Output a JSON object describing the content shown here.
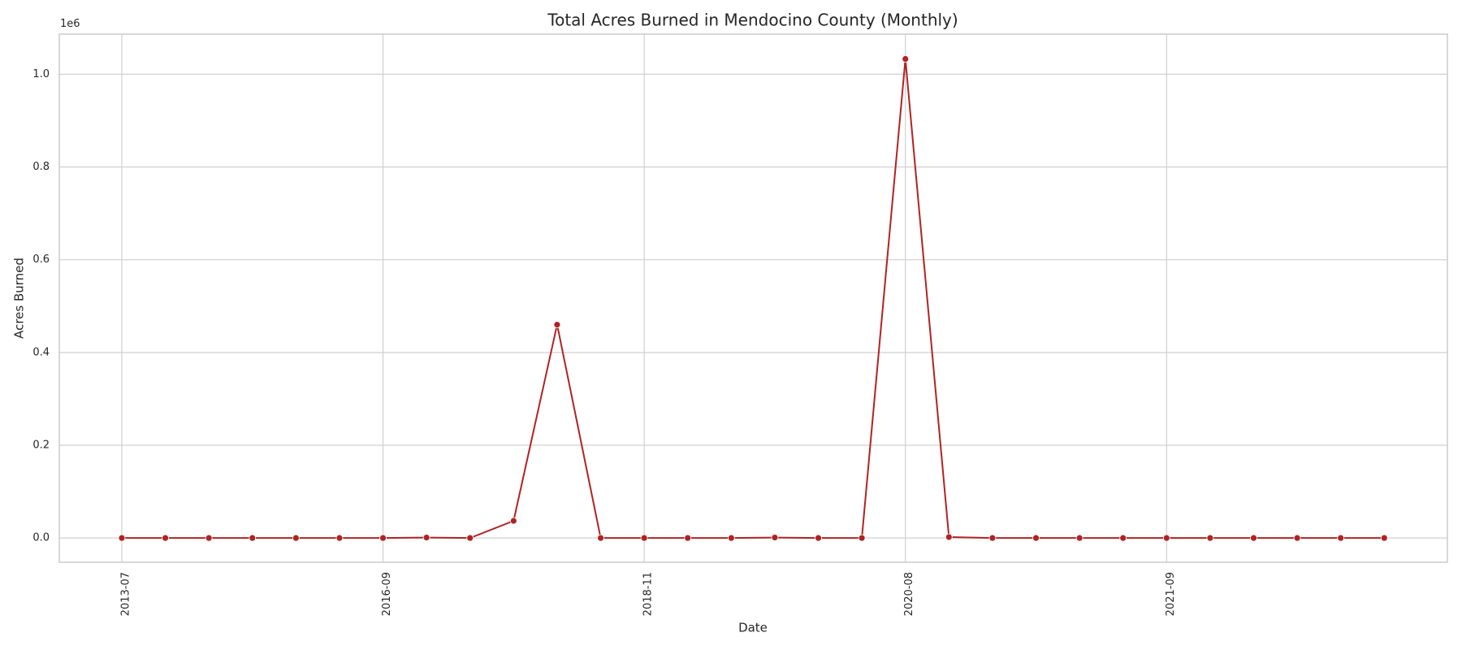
{
  "chart_data": {
    "type": "line",
    "title": "Total Acres Burned in Mendocino County (Monthly)",
    "x_label": "Date",
    "y_label": "Acres Burned",
    "y_offset_label": "1e6",
    "categories": [
      "2013-07",
      null,
      null,
      null,
      null,
      null,
      "2016-09",
      null,
      null,
      null,
      null,
      null,
      "2018-11",
      null,
      null,
      null,
      null,
      null,
      "2020-08",
      null,
      null,
      null,
      null,
      null,
      "2021-09",
      null,
      null,
      null,
      null,
      null
    ],
    "series": [
      {
        "name": "Acres Burned",
        "color": "#b22222",
        "values": [
          0,
          0,
          0,
          0,
          0,
          0,
          0,
          1000,
          0,
          37000,
          460000,
          0,
          0,
          0,
          0,
          1000,
          0,
          0,
          1033000,
          2000,
          0,
          0,
          0,
          0,
          0,
          0,
          0,
          0,
          0,
          0
        ]
      }
    ],
    "ylim": [
      -52300,
      1086500
    ],
    "yticks": [
      {
        "value": 0,
        "label": "0.0"
      },
      {
        "value": 200000,
        "label": "0.2"
      },
      {
        "value": 400000,
        "label": "0.4"
      },
      {
        "value": 600000,
        "label": "0.6"
      },
      {
        "value": 800000,
        "label": "0.8"
      },
      {
        "value": 1000000,
        "label": "1.0"
      }
    ],
    "grid": true
  }
}
